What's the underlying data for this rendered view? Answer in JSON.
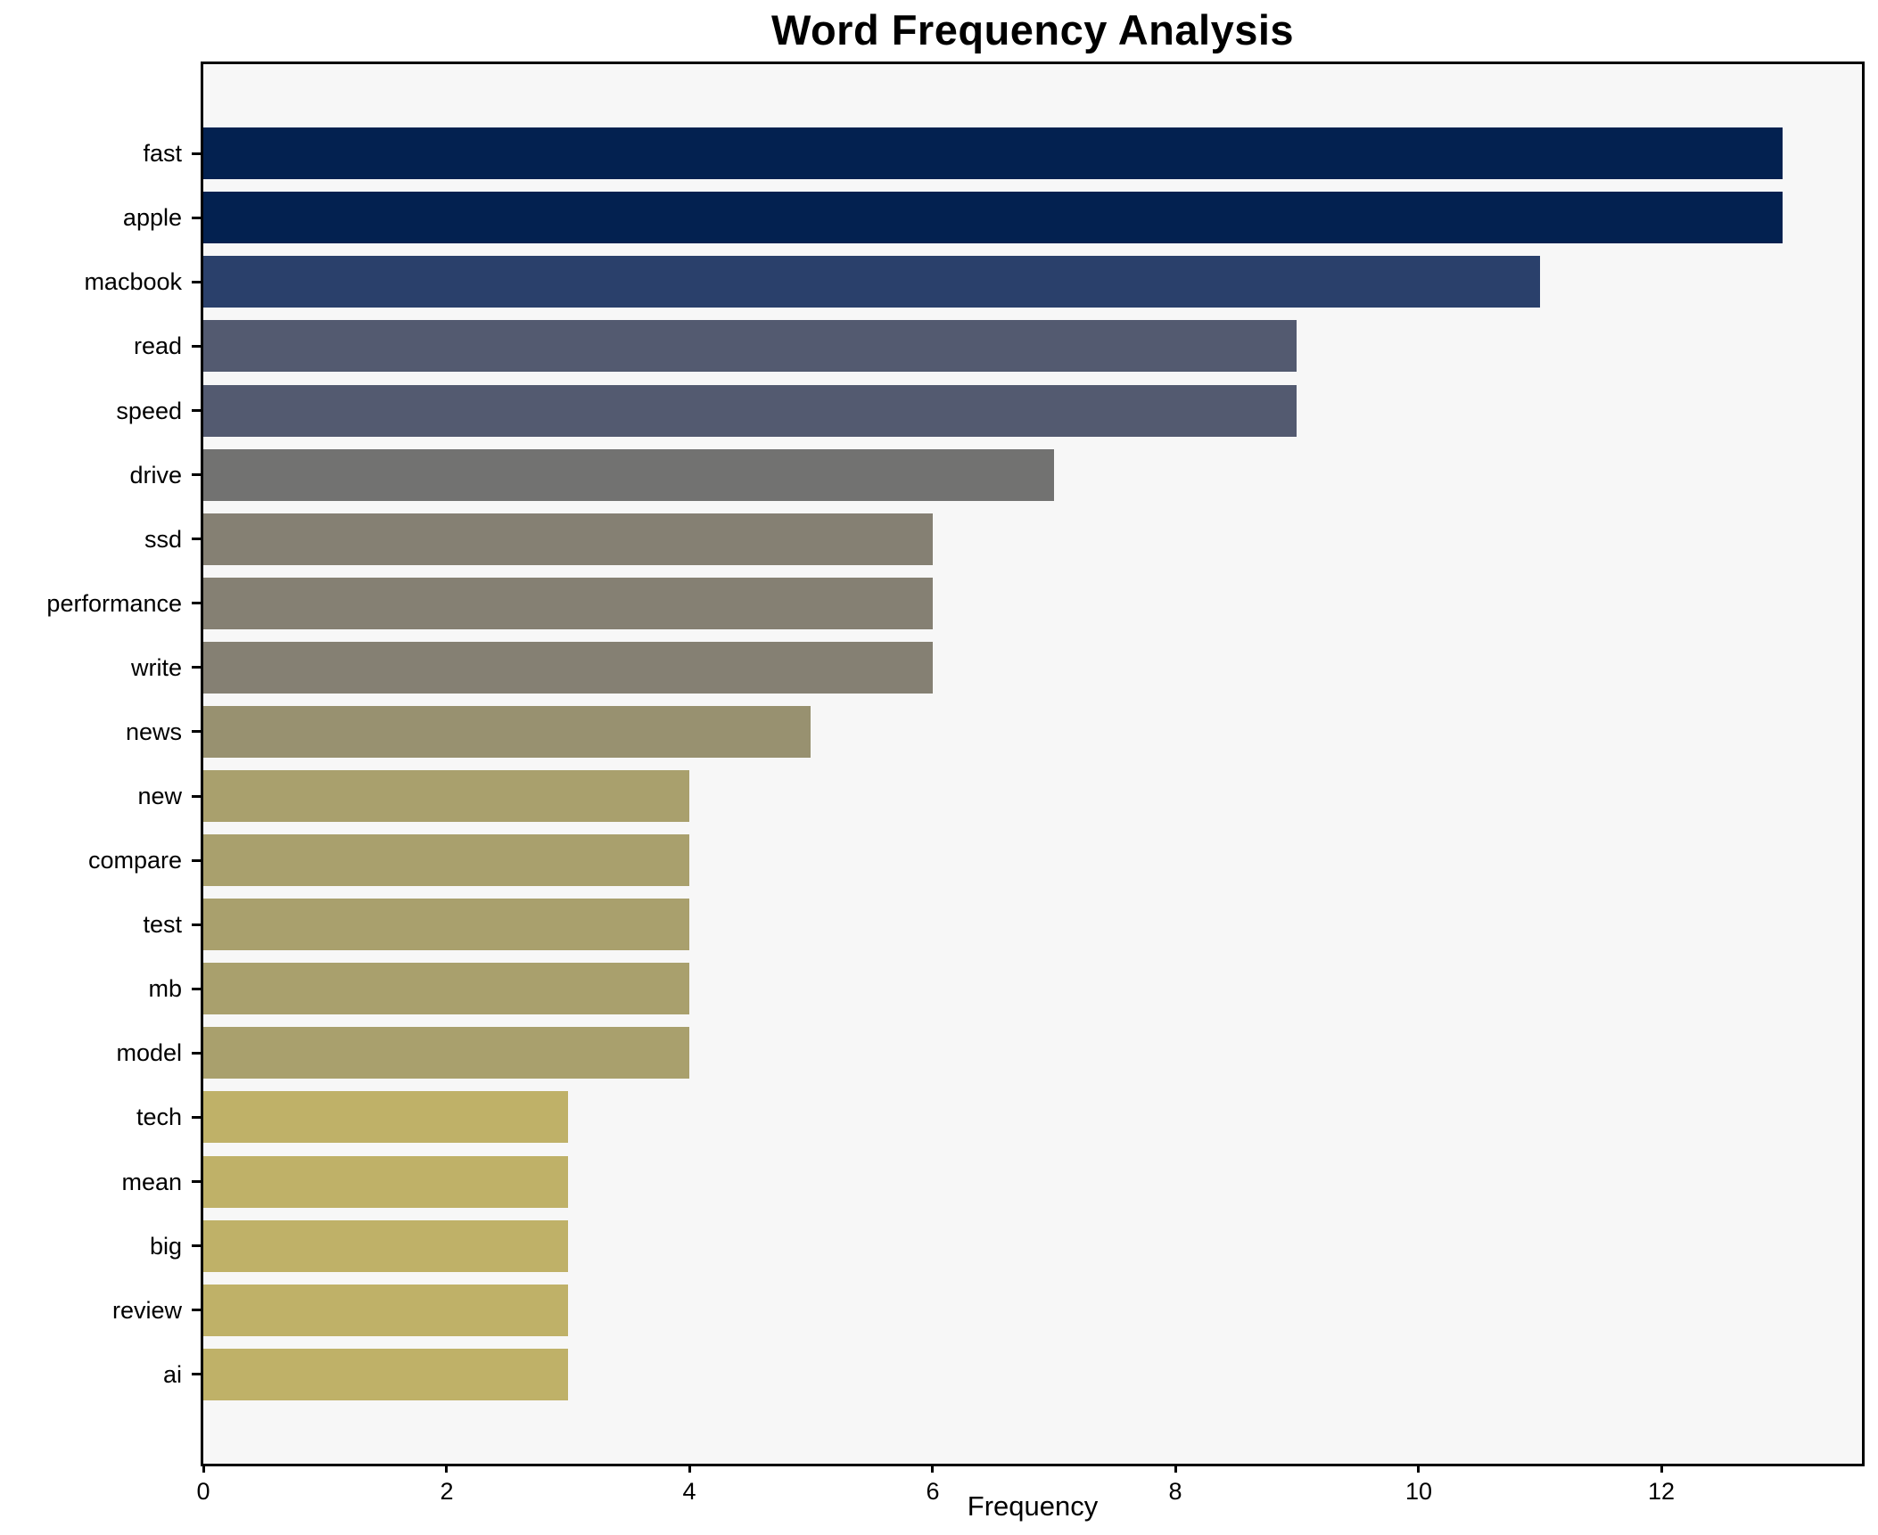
{
  "chart_data": {
    "type": "bar",
    "orientation": "horizontal",
    "title": "Word Frequency Analysis",
    "xlabel": "Frequency",
    "ylabel": "",
    "categories": [
      "fast",
      "apple",
      "macbook",
      "read",
      "speed",
      "drive",
      "ssd",
      "performance",
      "write",
      "news",
      "new",
      "compare",
      "test",
      "mb",
      "model",
      "tech",
      "mean",
      "big",
      "review",
      "ai"
    ],
    "values": [
      13,
      13,
      11,
      9,
      9,
      7,
      6,
      6,
      6,
      5,
      4,
      4,
      4,
      4,
      4,
      3,
      3,
      3,
      3,
      3
    ],
    "bar_colors": [
      "#032150",
      "#032150",
      "#2a406b",
      "#535a70",
      "#535a70",
      "#727271",
      "#858073",
      "#858073",
      "#858073",
      "#989170",
      "#a9a06d",
      "#a9a06d",
      "#a9a06d",
      "#a9a06d",
      "#a9a06d",
      "#bfb168",
      "#bfb168",
      "#bfb168",
      "#bfb168",
      "#bfb168"
    ],
    "xticks": [
      0,
      2,
      4,
      6,
      8,
      10,
      12
    ],
    "xlim": [
      0,
      13.65
    ],
    "grid": false,
    "legend": false,
    "plot_background": "#f7f7f7",
    "figure_background": "#ffffff",
    "spine_color": "#000000",
    "text_color": "#000000"
  }
}
